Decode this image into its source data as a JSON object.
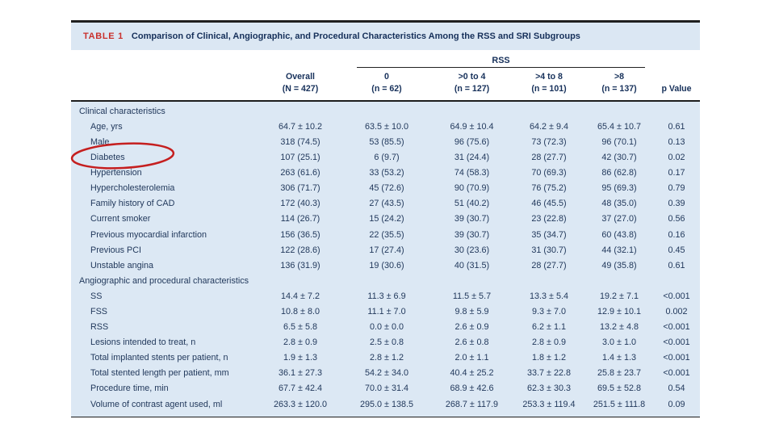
{
  "table": {
    "tag": "TABLE 1",
    "title": "Comparison of Clinical, Angiographic, and Procedural Characteristics Among the RSS and SRI Subgroups",
    "group_header": "RSS",
    "columns": [
      {
        "line1": "Overall",
        "line2": "(N = 427)"
      },
      {
        "line1": "0",
        "line2": "(n = 62)"
      },
      {
        "line1": ">0 to 4",
        "line2": "(n = 127)"
      },
      {
        "line1": ">4 to 8",
        "line2": "(n = 101)"
      },
      {
        "line1": ">8",
        "line2": "(n = 137)"
      },
      {
        "line1": "p Value",
        "line2": ""
      }
    ],
    "rows": [
      {
        "type": "section",
        "label": "Clinical characteristics"
      },
      {
        "type": "data",
        "label": "Age, yrs",
        "values": [
          "64.7 ± 10.2",
          "63.5 ± 10.0",
          "64.9 ± 10.4",
          "64.2 ± 9.4",
          "65.4 ± 10.7",
          "0.61"
        ]
      },
      {
        "type": "data",
        "label": "Male",
        "values": [
          "318 (74.5)",
          "53 (85.5)",
          "96 (75.6)",
          "73 (72.3)",
          "96 (70.1)",
          "0.13"
        ]
      },
      {
        "type": "data",
        "label": "Diabetes",
        "annotated": true,
        "values": [
          "107 (25.1)",
          "6 (9.7)",
          "31 (24.4)",
          "28 (27.7)",
          "42 (30.7)",
          "0.02"
        ]
      },
      {
        "type": "data",
        "label": "Hypertension",
        "values": [
          "263 (61.6)",
          "33 (53.2)",
          "74 (58.3)",
          "70 (69.3)",
          "86 (62.8)",
          "0.17"
        ]
      },
      {
        "type": "data",
        "label": "Hypercholesterolemia",
        "values": [
          "306 (71.7)",
          "45 (72.6)",
          "90 (70.9)",
          "76 (75.2)",
          "95 (69.3)",
          "0.79"
        ]
      },
      {
        "type": "data",
        "label": "Family history of CAD",
        "values": [
          "172 (40.3)",
          "27 (43.5)",
          "51 (40.2)",
          "46 (45.5)",
          "48 (35.0)",
          "0.39"
        ]
      },
      {
        "type": "data",
        "label": "Current smoker",
        "values": [
          "114 (26.7)",
          "15 (24.2)",
          "39 (30.7)",
          "23 (22.8)",
          "37 (27.0)",
          "0.56"
        ]
      },
      {
        "type": "data",
        "label": "Previous myocardial infarction",
        "values": [
          "156 (36.5)",
          "22 (35.5)",
          "39 (30.7)",
          "35 (34.7)",
          "60 (43.8)",
          "0.16"
        ]
      },
      {
        "type": "data",
        "label": "Previous PCI",
        "values": [
          "122 (28.6)",
          "17 (27.4)",
          "30 (23.6)",
          "31 (30.7)",
          "44 (32.1)",
          "0.45"
        ]
      },
      {
        "type": "data",
        "label": "Unstable angina",
        "values": [
          "136 (31.9)",
          "19 (30.6)",
          "40 (31.5)",
          "28 (27.7)",
          "49 (35.8)",
          "0.61"
        ]
      },
      {
        "type": "section",
        "label": "Angiographic and procedural characteristics"
      },
      {
        "type": "data",
        "label": "SS",
        "values": [
          "14.4 ± 7.2",
          "11.3 ± 6.9",
          "11.5 ± 5.7",
          "13.3 ± 5.4",
          "19.2 ± 7.1",
          "<0.001"
        ]
      },
      {
        "type": "data",
        "label": "FSS",
        "values": [
          "10.8 ± 8.0",
          "11.1 ± 7.0",
          "9.8 ± 5.9",
          "9.3 ± 7.0",
          "12.9 ± 10.1",
          "0.002"
        ]
      },
      {
        "type": "data",
        "label": "RSS",
        "values": [
          "6.5 ± 5.8",
          "0.0 ± 0.0",
          "2.6 ± 0.9",
          "6.2 ± 1.1",
          "13.2 ± 4.8",
          "<0.001"
        ]
      },
      {
        "type": "data",
        "label": "Lesions intended to treat, n",
        "values": [
          "2.8 ± 0.9",
          "2.5 ± 0.8",
          "2.6 ± 0.8",
          "2.8 ± 0.9",
          "3.0 ± 1.0",
          "<0.001"
        ]
      },
      {
        "type": "data",
        "label": "Total implanted stents per patient, n",
        "values": [
          "1.9 ± 1.3",
          "2.8 ± 1.2",
          "2.0 ± 1.1",
          "1.8 ± 1.2",
          "1.4 ± 1.3",
          "<0.001"
        ]
      },
      {
        "type": "data",
        "label": "Total stented length per patient, mm",
        "values": [
          "36.1 ± 27.3",
          "54.2 ± 34.0",
          "40.4 ± 25.2",
          "33.7 ± 22.8",
          "25.8 ± 23.7",
          "<0.001"
        ]
      },
      {
        "type": "data",
        "label": "Procedure time, min",
        "values": [
          "67.7 ± 42.4",
          "70.0 ± 31.4",
          "68.9 ± 42.6",
          "62.3 ± 30.3",
          "69.5 ± 52.8",
          "0.54"
        ]
      },
      {
        "type": "data",
        "label": "Volume of contrast agent used, ml",
        "values": [
          "263.3 ± 120.0",
          "295.0 ± 138.5",
          "268.7 ± 117.9",
          "253.3 ± 119.4",
          "251.5 ± 111.8",
          "0.09"
        ]
      }
    ]
  },
  "annotation": {
    "shape": "ellipse",
    "target_label": "Diabetes",
    "color": "#c51f1f"
  },
  "colors": {
    "band_blue": "#dbe7f3",
    "body_blue": "#dce8f4",
    "tag_red": "#c9302c",
    "heading_navy": "#16305a",
    "text_navy": "#22395c",
    "rule_dark": "#1d1d1d"
  }
}
